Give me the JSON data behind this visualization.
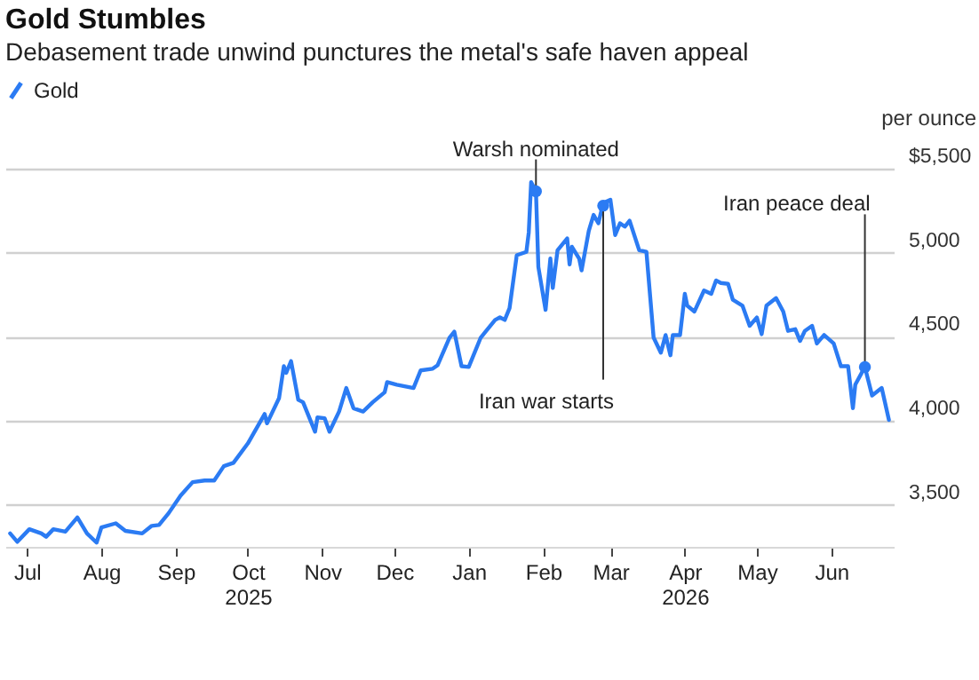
{
  "chart_data": {
    "type": "line",
    "title": "Gold Stumbles",
    "subtitle": "Debasement trade unwind punctures the metal's safe haven appeal",
    "ylabel": "per ounce",
    "x": [
      "2025-06-24",
      "2025-06-27",
      "2025-07-02",
      "2025-07-07",
      "2025-07-09",
      "2025-07-12",
      "2025-07-17",
      "2025-07-22",
      "2025-07-26",
      "2025-07-30",
      "2025-08-01",
      "2025-08-07",
      "2025-08-11",
      "2025-08-18",
      "2025-08-22",
      "2025-08-25",
      "2025-08-29",
      "2025-09-03",
      "2025-09-08",
      "2025-09-13",
      "2025-09-17",
      "2025-09-21",
      "2025-09-25",
      "2025-10-01",
      "2025-10-08",
      "2025-10-09",
      "2025-10-14",
      "2025-10-16",
      "2025-10-17",
      "2025-10-19",
      "2025-10-22",
      "2025-10-24",
      "2025-10-29",
      "2025-10-30",
      "2025-11-02",
      "2025-11-04",
      "2025-11-08",
      "2025-11-11",
      "2025-11-14",
      "2025-11-18",
      "2025-11-22",
      "2025-11-27",
      "2025-11-28",
      "2025-12-02",
      "2025-12-09",
      "2025-12-12",
      "2025-12-17",
      "2025-12-19",
      "2025-12-24",
      "2025-12-26",
      "2025-12-29",
      "2026-01-01",
      "2026-01-06",
      "2026-01-08",
      "2026-01-12",
      "2026-01-14",
      "2026-01-16",
      "2026-01-18",
      "2026-01-21",
      "2026-01-25",
      "2026-01-26",
      "2026-01-27",
      "2026-01-29",
      "2026-01-30",
      "2026-02-02",
      "2026-02-04",
      "2026-02-05",
      "2026-02-07",
      "2026-02-11",
      "2026-02-12",
      "2026-02-13",
      "2026-02-16",
      "2026-02-17",
      "2026-02-20",
      "2026-02-22",
      "2026-02-24",
      "2026-02-26",
      "2026-03-01",
      "2026-03-03",
      "2026-03-05",
      "2026-03-07",
      "2026-03-09",
      "2026-03-13",
      "2026-03-16",
      "2026-03-19",
      "2026-03-22",
      "2026-03-24",
      "2026-03-26",
      "2026-03-27",
      "2026-03-30",
      "2026-04-01",
      "2026-04-02",
      "2026-04-05",
      "2026-04-09",
      "2026-04-12",
      "2026-04-14",
      "2026-04-16",
      "2026-04-19",
      "2026-04-21",
      "2026-04-25",
      "2026-04-28",
      "2026-05-01",
      "2026-05-03",
      "2026-05-05",
      "2026-05-09",
      "2026-05-12",
      "2026-05-14",
      "2026-05-17",
      "2026-05-19",
      "2026-05-21",
      "2026-05-24",
      "2026-05-26",
      "2026-05-29",
      "2026-06-02",
      "2026-06-05",
      "2026-06-08",
      "2026-06-10",
      "2026-06-11",
      "2026-06-15",
      "2026-06-18",
      "2026-06-22",
      "2026-06-25"
    ],
    "series": [
      {
        "name": "Gold",
        "color": "#2b7bf3",
        "values": [
          3330,
          3280,
          3355,
          3330,
          3310,
          3355,
          3340,
          3425,
          3330,
          3275,
          3365,
          3390,
          3345,
          3330,
          3375,
          3380,
          3450,
          3555,
          3635,
          3645,
          3645,
          3730,
          3750,
          3865,
          4040,
          3985,
          4135,
          4325,
          4285,
          4355,
          4125,
          4110,
          3935,
          4020,
          4015,
          3935,
          4055,
          4195,
          4075,
          4055,
          4110,
          4170,
          4230,
          4215,
          4195,
          4300,
          4310,
          4330,
          4495,
          4530,
          4325,
          4320,
          4495,
          4530,
          4600,
          4615,
          4600,
          4670,
          4985,
          5005,
          5120,
          5420,
          5365,
          4915,
          4660,
          4965,
          4790,
          5015,
          5085,
          4930,
          5035,
          4965,
          4895,
          5130,
          5225,
          5175,
          5295,
          5315,
          5105,
          5175,
          5155,
          5190,
          5015,
          5005,
          4495,
          4405,
          4510,
          4390,
          4510,
          4510,
          4755,
          4685,
          4650,
          4775,
          4755,
          4835,
          4820,
          4815,
          4720,
          4685,
          4565,
          4615,
          4515,
          4685,
          4730,
          4650,
          4535,
          4545,
          4475,
          4535,
          4565,
          4460,
          4510,
          4460,
          4325,
          4325,
          4075,
          4215,
          4320,
          4150,
          4195,
          4005
        ]
      }
    ],
    "xlim": [
      "2025-06-22",
      "2026-06-27"
    ],
    "xticks": [
      {
        "value": "2025-07-01",
        "label": "Jul"
      },
      {
        "value": "2025-08-01",
        "label": "Aug"
      },
      {
        "value": "2025-09-01",
        "label": "Sep"
      },
      {
        "value": "2025-10-01",
        "label": "Oct\n2025"
      },
      {
        "value": "2025-11-01",
        "label": "Nov"
      },
      {
        "value": "2025-12-01",
        "label": "Dec"
      },
      {
        "value": "2026-01-01",
        "label": "Jan"
      },
      {
        "value": "2026-02-01",
        "label": "Feb"
      },
      {
        "value": "2026-03-01",
        "label": "Mar"
      },
      {
        "value": "2026-04-01",
        "label": "Apr\n2026"
      },
      {
        "value": "2026-05-01",
        "label": "May"
      },
      {
        "value": "2026-06-01",
        "label": "Jun"
      }
    ],
    "ylim": [
      3250,
      5500
    ],
    "yticks": [
      {
        "value": 3500,
        "label": "3,500"
      },
      {
        "value": 4000,
        "label": "4,000"
      },
      {
        "value": 4500,
        "label": "4,500"
      },
      {
        "value": 5000,
        "label": "5,000"
      },
      {
        "value": 5500,
        "label": "$5,500"
      }
    ],
    "grid": "y",
    "legend": "top left",
    "annotations": [
      {
        "text": "Warsh nominated",
        "x": "2026-01-29",
        "y": 5365
      },
      {
        "text": "Iran war starts",
        "x": "2026-02-26",
        "y": 5280
      },
      {
        "text": "Iran peace deal",
        "x": "2026-06-15",
        "y": 4320
      }
    ]
  }
}
